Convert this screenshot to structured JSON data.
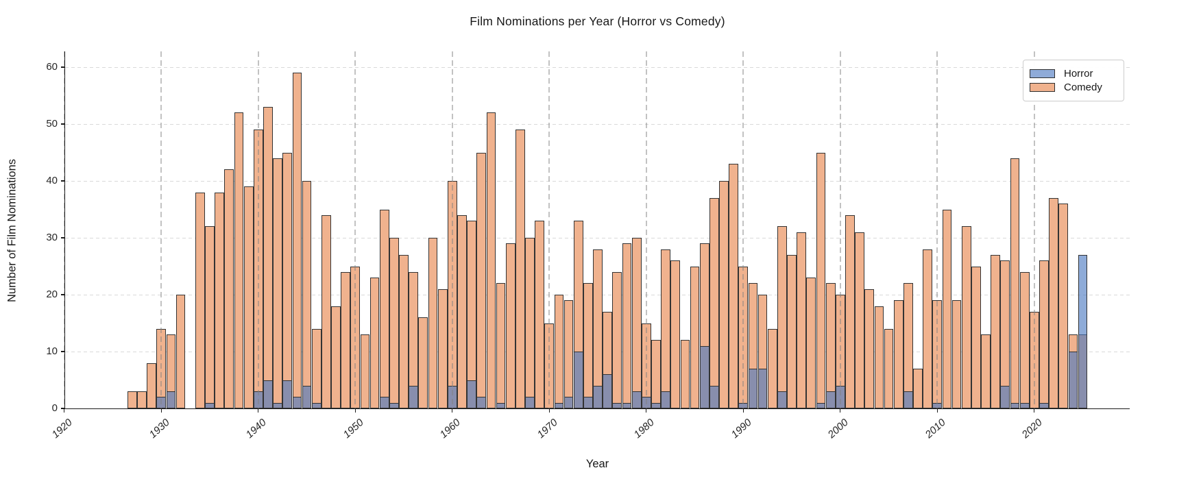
{
  "title": "Film Nominations per Year (Horror vs Comedy)",
  "axes": {
    "x_label": "Year",
    "y_label": "Number of Film Nominations",
    "x_tick_labels": [
      "1920",
      "1930",
      "1940",
      "1950",
      "1960",
      "1970",
      "1980",
      "1990",
      "2000",
      "2010",
      "2020"
    ],
    "y_tick_labels": [
      "0",
      "10",
      "20",
      "30",
      "40",
      "50",
      "60"
    ]
  },
  "legend": {
    "items": [
      {
        "name": "Horror",
        "color": "#8fabd8"
      },
      {
        "name": "Comedy",
        "color": "#f0b28e"
      }
    ]
  },
  "colors": {
    "comedy_fill": "#f0b28e",
    "horror_fill_rgba": "rgba(73,120,192,0.62)",
    "bar_edge": "#333333",
    "horror_over_white": "#8fabd8",
    "horror_over_comedy": "#8d87a0"
  },
  "chart_data": {
    "type": "bar",
    "subtype": "overlapping-histogram",
    "title": "Film Nominations per Year (Horror vs Comedy)",
    "xlabel": "Year",
    "ylabel": "Number of Film Nominations",
    "xlim": [
      1920,
      2030
    ],
    "ylim": [
      0,
      62
    ],
    "xticks": [
      1920,
      1930,
      1940,
      1950,
      1960,
      1970,
      1980,
      1990,
      2000,
      2010,
      2020
    ],
    "yticks": [
      0,
      10,
      20,
      30,
      40,
      50,
      60
    ],
    "grid": true,
    "legend_position": "upper right",
    "x": [
      1927,
      1928,
      1929,
      1930,
      1931,
      1932,
      1933,
      1934,
      1935,
      1936,
      1937,
      1938,
      1939,
      1940,
      1941,
      1942,
      1943,
      1944,
      1945,
      1946,
      1947,
      1948,
      1949,
      1950,
      1951,
      1952,
      1953,
      1954,
      1955,
      1956,
      1957,
      1958,
      1959,
      1960,
      1961,
      1962,
      1963,
      1964,
      1965,
      1966,
      1967,
      1968,
      1969,
      1970,
      1971,
      1972,
      1973,
      1974,
      1975,
      1976,
      1977,
      1978,
      1979,
      1980,
      1981,
      1982,
      1983,
      1984,
      1985,
      1986,
      1987,
      1988,
      1989,
      1990,
      1991,
      1992,
      1993,
      1994,
      1995,
      1996,
      1997,
      1998,
      1999,
      2000,
      2001,
      2002,
      2003,
      2004,
      2005,
      2006,
      2007,
      2008,
      2009,
      2010,
      2011,
      2012,
      2013,
      2014,
      2015,
      2016,
      2017,
      2018,
      2019,
      2020,
      2021,
      2022,
      2023,
      2024,
      2025
    ],
    "series": [
      {
        "name": "Horror",
        "values": [
          0,
          0,
          0,
          2,
          3,
          0,
          0,
          0,
          1,
          0,
          0,
          0,
          0,
          3,
          5,
          1,
          5,
          2,
          4,
          1,
          0,
          0,
          0,
          0,
          0,
          0,
          2,
          1,
          0,
          4,
          0,
          0,
          0,
          4,
          0,
          5,
          2,
          0,
          1,
          0,
          0,
          2,
          0,
          0,
          1,
          2,
          10,
          2,
          4,
          6,
          1,
          1,
          3,
          2,
          1,
          3,
          0,
          0,
          0,
          11,
          4,
          0,
          0,
          1,
          7,
          7,
          0,
          3,
          0,
          0,
          0,
          1,
          3,
          4,
          0,
          0,
          0,
          0,
          0,
          0,
          3,
          0,
          0,
          1,
          0,
          0,
          0,
          0,
          0,
          0,
          4,
          1,
          1,
          0,
          1,
          0,
          0,
          10,
          27
        ]
      },
      {
        "name": "Comedy",
        "values": [
          3,
          3,
          8,
          14,
          13,
          20,
          0,
          38,
          32,
          38,
          42,
          52,
          39,
          49,
          53,
          44,
          45,
          59,
          40,
          14,
          34,
          18,
          24,
          25,
          13,
          23,
          35,
          30,
          27,
          24,
          16,
          30,
          21,
          40,
          34,
          33,
          45,
          52,
          22,
          29,
          49,
          30,
          33,
          15,
          20,
          19,
          33,
          22,
          28,
          17,
          24,
          29,
          30,
          15,
          12,
          28,
          26,
          12,
          25,
          29,
          37,
          40,
          43,
          25,
          22,
          20,
          14,
          32,
          27,
          31,
          23,
          45,
          22,
          20,
          34,
          31,
          21,
          18,
          14,
          19,
          22,
          7,
          28,
          19,
          35,
          19,
          32,
          25,
          13,
          27,
          26,
          44,
          24,
          17,
          26,
          37,
          36,
          13,
          13
        ]
      }
    ]
  }
}
